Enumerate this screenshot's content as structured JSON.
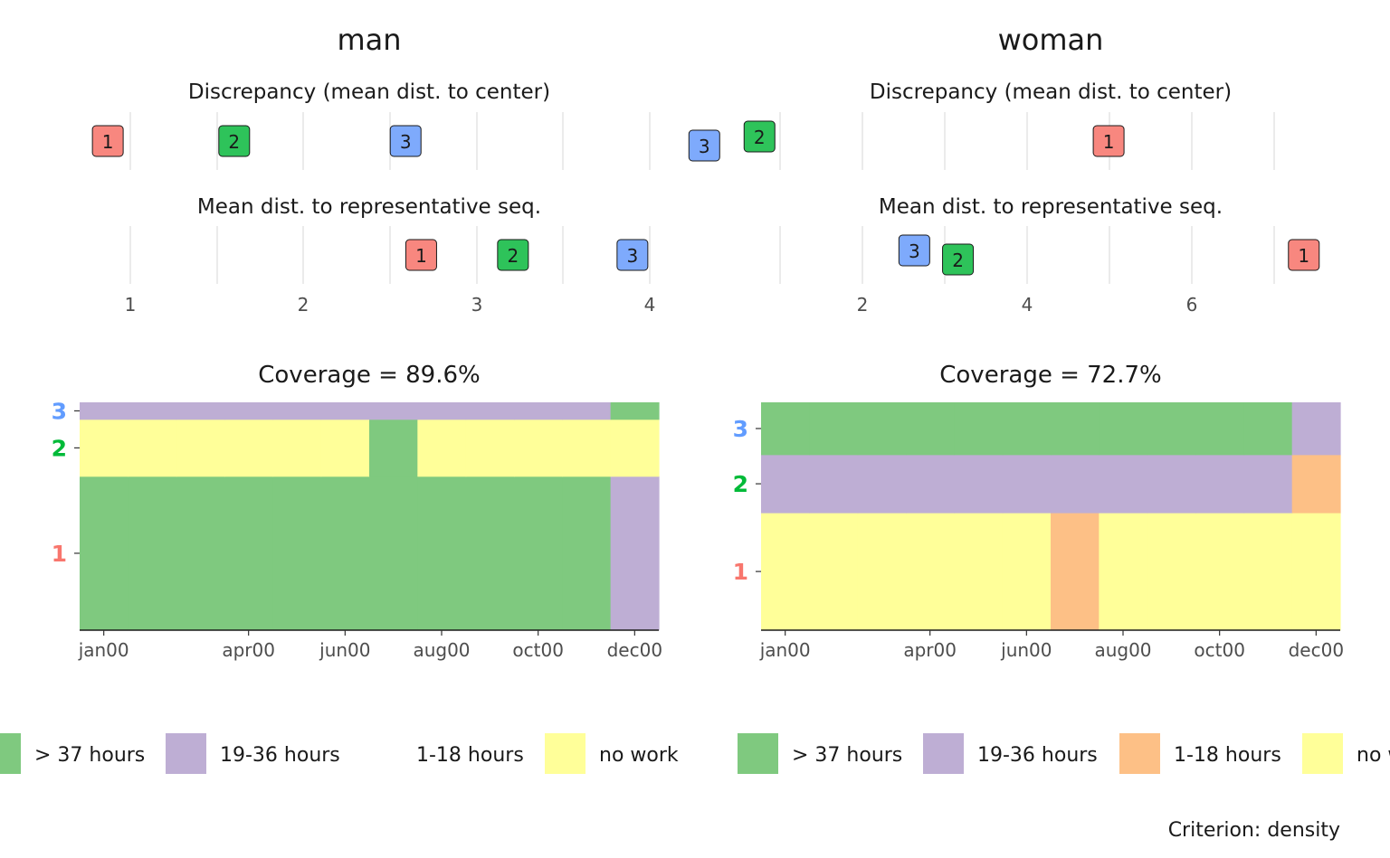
{
  "criterion_label": "Criterion: density",
  "colors": {
    "> 37 hours": "#7fc97f",
    "19-36 hours": "#beaed4",
    "1-18 hours": "#fdc086",
    "no work": "#ffff99",
    "cluster_1": "#f8766d",
    "cluster_2": "#00ba38",
    "cluster_3": "#619cff",
    "badge_1": "#f8877f",
    "badge_2": "#2ec35a",
    "badge_3": "#7eaafc"
  },
  "chart_data": [
    {
      "type": "dot",
      "panel": "man",
      "title": "man",
      "subtitle": "Discrepancy (mean dist. to center)",
      "x_ticks": [
        "1",
        "2",
        "3",
        "4"
      ],
      "xlim": [
        0.75,
        4.05
      ],
      "points": [
        {
          "label": "1",
          "x": 0.87
        },
        {
          "label": "2",
          "x": 1.6
        },
        {
          "label": "3",
          "x": 2.59
        }
      ]
    },
    {
      "type": "dot",
      "panel": "man",
      "subtitle": "Mean dist. to representative seq.",
      "xlim": [
        0.75,
        4.05
      ],
      "points": [
        {
          "label": "1",
          "x": 2.68
        },
        {
          "label": "2",
          "x": 3.21
        },
        {
          "label": "3",
          "x": 3.9
        }
      ]
    },
    {
      "type": "heatmap",
      "panel": "man",
      "title": "Coverage = 89.6%",
      "x_ticks": [
        "jan00",
        "apr00",
        "jun00",
        "aug00",
        "oct00",
        "dec00"
      ],
      "y_ticks": [
        "1",
        "2",
        "3"
      ],
      "clusters": [
        {
          "label": "1",
          "share": 0.675,
          "states": [
            "> 37 hours",
            "> 37 hours",
            "> 37 hours",
            "> 37 hours",
            "> 37 hours",
            "> 37 hours",
            "> 37 hours",
            "> 37 hours",
            "> 37 hours",
            "> 37 hours",
            "> 37 hours",
            "19-36 hours"
          ]
        },
        {
          "label": "2",
          "share": 0.25,
          "states": [
            "no work",
            "no work",
            "no work",
            "no work",
            "no work",
            "no work",
            "> 37 hours",
            "no work",
            "no work",
            "no work",
            "no work",
            "no work"
          ]
        },
        {
          "label": "3",
          "share": 0.075,
          "states": [
            "19-36 hours",
            "19-36 hours",
            "19-36 hours",
            "19-36 hours",
            "19-36 hours",
            "19-36 hours",
            "19-36 hours",
            "19-36 hours",
            "19-36 hours",
            "19-36 hours",
            "19-36 hours",
            "> 37 hours"
          ]
        }
      ],
      "legend": [
        "> 37 hours",
        "19-36 hours",
        "1-18 hours",
        "no work"
      ]
    },
    {
      "type": "dot",
      "panel": "woman",
      "title": "woman",
      "subtitle": "Discrepancy (mean dist. to center)",
      "x_ticks": [
        "2",
        "4",
        "6"
      ],
      "xlim": [
        0.0,
        7.5
      ],
      "points": [
        {
          "label": "3",
          "x": 0.08
        },
        {
          "label": "2",
          "x": 0.75
        },
        {
          "label": "1",
          "x": 4.99
        }
      ]
    },
    {
      "type": "dot",
      "panel": "woman",
      "subtitle": "Mean dist. to representative seq.",
      "xlim": [
        0.0,
        7.5
      ],
      "points": [
        {
          "label": "3",
          "x": 2.63
        },
        {
          "label": "2",
          "x": 3.16
        },
        {
          "label": "1",
          "x": 7.36
        }
      ]
    },
    {
      "type": "heatmap",
      "panel": "woman",
      "title": "Coverage = 72.7%",
      "x_ticks": [
        "jan00",
        "apr00",
        "jun00",
        "aug00",
        "oct00",
        "dec00"
      ],
      "y_ticks": [
        "1",
        "2",
        "3"
      ],
      "clusters": [
        {
          "label": "1",
          "share": 0.515,
          "states": [
            "no work",
            "no work",
            "no work",
            "no work",
            "no work",
            "no work",
            "1-18 hours",
            "no work",
            "no work",
            "no work",
            "no work",
            "no work"
          ]
        },
        {
          "label": "2",
          "share": 0.255,
          "states": [
            "19-36 hours",
            "19-36 hours",
            "19-36 hours",
            "19-36 hours",
            "19-36 hours",
            "19-36 hours",
            "19-36 hours",
            "19-36 hours",
            "19-36 hours",
            "19-36 hours",
            "19-36 hours",
            "1-18 hours"
          ]
        },
        {
          "label": "3",
          "share": 0.23,
          "states": [
            "> 37 hours",
            "> 37 hours",
            "> 37 hours",
            "> 37 hours",
            "> 37 hours",
            "> 37 hours",
            "> 37 hours",
            "> 37 hours",
            "> 37 hours",
            "> 37 hours",
            "> 37 hours",
            "19-36 hours"
          ]
        }
      ],
      "legend": [
        "> 37 hours",
        "19-36 hours",
        "1-18 hours",
        "no work"
      ]
    }
  ]
}
